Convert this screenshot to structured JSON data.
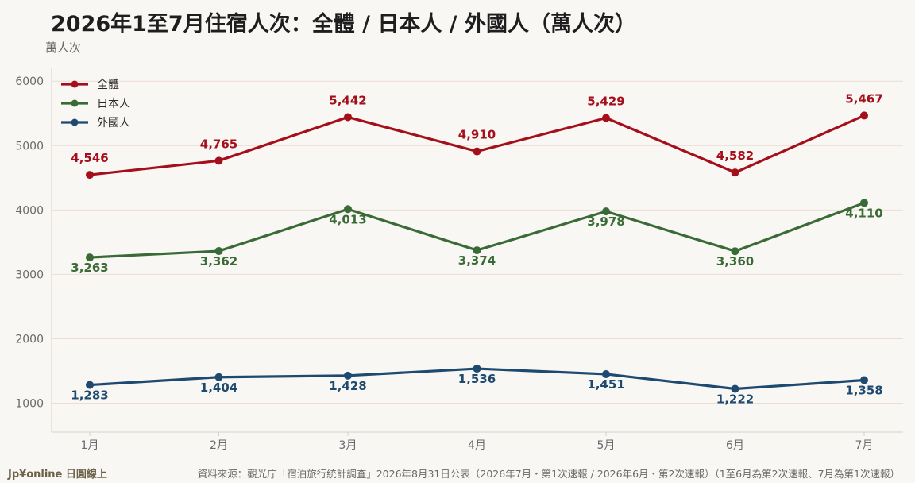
{
  "chart_data": {
    "type": "line",
    "title": "2026年1至7月住宿人次：全體 / 日本人 / 外國人（萬人次）",
    "ylabel": "萬人次",
    "xlabel": "",
    "categories": [
      "1月",
      "2月",
      "3月",
      "4月",
      "5月",
      "6月",
      "7月"
    ],
    "ylim": [
      550,
      6200
    ],
    "yticks": [
      1000,
      2000,
      3000,
      4000,
      5000,
      6000
    ],
    "grid": true,
    "legend_position": "top-left",
    "series": [
      {
        "name": "全體",
        "color": "#a50f1c",
        "values": [
          4546,
          4765,
          5442,
          4910,
          5429,
          4582,
          5467
        ],
        "labels": [
          "4,546",
          "4,765",
          "5,442",
          "4,910",
          "5,429",
          "4,582",
          "5,467"
        ]
      },
      {
        "name": "日本人",
        "color": "#3a6b37",
        "values": [
          3263,
          3362,
          4013,
          3374,
          3978,
          3360,
          4110
        ],
        "labels": [
          "3,263",
          "3,362",
          "4,013",
          "3,374",
          "3,978",
          "3,360",
          "4,110"
        ]
      },
      {
        "name": "外國人",
        "color": "#1e4a72",
        "values": [
          1283,
          1404,
          1428,
          1536,
          1451,
          1222,
          1358
        ],
        "labels": [
          "1,283",
          "1,404",
          "1,428",
          "1,536",
          "1,451",
          "1,222",
          "1,358"
        ]
      }
    ]
  },
  "footer": {
    "brand": "Jp¥online 日圓線上",
    "source": "資料來源：觀光庁「宿泊旅行統計調査」2026年8月31日公表（2026年7月・第1次速報 / 2026年6月・第2次速報）（1至6月為第2次速報、7月為第1次速報）"
  }
}
